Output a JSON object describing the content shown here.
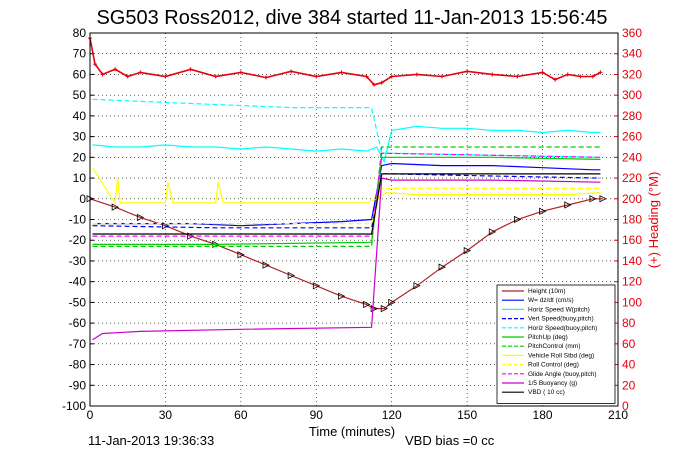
{
  "title": "SG503 Ross2012, dive 384 started 11-Jan-2013 15:56:45",
  "xlabel": "Time (minutes)",
  "ylabel_right": "(+) Heading (°M)",
  "footer_left": "11-Jan-2013 19:36:33",
  "footer_right": "VBD bias =0 cc",
  "colors": {
    "heading": "#e8000b",
    "right_axis": "#e8000b"
  },
  "chart_data": {
    "type": "line",
    "xlim": [
      0,
      210
    ],
    "ylim_left": [
      -100,
      80
    ],
    "ylim_right": [
      0,
      360
    ],
    "x_ticks": [
      "0",
      "30",
      "60",
      "90",
      "120",
      "150",
      "180",
      "210"
    ],
    "y_ticks_left": [
      "80",
      "70",
      "60",
      "50",
      "40",
      "30",
      "20",
      "10",
      "0",
      "-10",
      "-20",
      "-30",
      "-40",
      "-50",
      "-60",
      "-70",
      "-80",
      "-90",
      "-100"
    ],
    "y_ticks_right": [
      "360",
      "340",
      "320",
      "300",
      "280",
      "260",
      "240",
      "220",
      "200",
      "180",
      "160",
      "140",
      "120",
      "100",
      "80",
      "60",
      "40",
      "20",
      "0"
    ],
    "grid": true,
    "legend_position": "bottom-right",
    "series": [
      {
        "name": "Height (10m)",
        "color": "#b22222",
        "style": "solid",
        "marker": "triangle",
        "x": [
          0,
          10,
          20,
          30,
          40,
          50,
          60,
          70,
          80,
          90,
          100,
          110,
          113,
          117,
          120,
          130,
          140,
          150,
          160,
          170,
          180,
          190,
          200,
          204
        ],
        "y": [
          0,
          -4,
          -9,
          -13,
          -18,
          -22,
          -27,
          -32,
          -37,
          -42,
          -47,
          -51,
          -53,
          -53,
          -50,
          -42,
          -33,
          -25,
          -16,
          -10,
          -6,
          -3,
          0,
          0
        ]
      },
      {
        "name": "W= dz/dt (cm/s)",
        "color": "#0000ff",
        "style": "solid",
        "x": [
          1,
          20,
          40,
          60,
          80,
          100,
          112,
          116,
          120,
          140,
          160,
          180,
          200,
          203
        ],
        "y": [
          -12,
          -12,
          -12,
          -13,
          -12,
          -11,
          -10,
          16,
          17,
          16,
          16,
          15,
          14,
          14
        ]
      },
      {
        "name": "Horiz Speed W(pitch)",
        "color": "#00ffff",
        "style": "solid",
        "x": [
          1,
          10,
          20,
          30,
          40,
          50,
          60,
          70,
          80,
          90,
          100,
          110,
          114,
          117,
          120,
          130,
          140,
          150,
          160,
          170,
          180,
          190,
          200,
          203
        ],
        "y": [
          26,
          25,
          25,
          26,
          25,
          25,
          24,
          25,
          24,
          23,
          24,
          23,
          25,
          18,
          33,
          35,
          34,
          34,
          33,
          33,
          32,
          33,
          32,
          32
        ]
      },
      {
        "name": "Vert Speed(buoy,pitch)",
        "color": "#0000ff",
        "style": "dashed",
        "x": [
          1,
          50,
          112,
          116,
          120,
          160,
          203
        ],
        "y": [
          -13,
          -14,
          -14,
          12,
          12,
          11,
          10
        ]
      },
      {
        "name": "Horiz Speed(buoy,pitch)",
        "color": "#00ffff",
        "style": "dashed",
        "x": [
          1,
          40,
          80,
          112,
          116,
          120,
          160,
          203
        ],
        "y": [
          48,
          46,
          44,
          44,
          22,
          22,
          21,
          20
        ]
      },
      {
        "name": "PitchUp (deg)",
        "color": "#00cc00",
        "style": "solid",
        "x": [
          1,
          50,
          112,
          116,
          120,
          160,
          203
        ],
        "y": [
          -22,
          -22,
          -21,
          20,
          20,
          20,
          19
        ]
      },
      {
        "name": "PitchControl (mm)",
        "color": "#00cc00",
        "style": "dashed",
        "x": [
          1,
          112,
          116,
          203
        ],
        "y": [
          -23,
          -23,
          25,
          25
        ]
      },
      {
        "name": "Vehicle Roll Stbd (deg)",
        "color": "#ffff00",
        "style": "solid",
        "x": [
          1,
          10,
          11,
          12,
          20,
          30,
          31,
          33,
          40,
          50,
          51,
          53,
          60,
          70,
          80,
          90,
          100,
          110,
          114,
          118,
          130,
          150,
          170,
          190,
          203
        ],
        "y": [
          15,
          -2,
          10,
          -2,
          -2,
          -2,
          8,
          -2,
          -2,
          -2,
          8,
          -2,
          -2,
          -2,
          -2,
          -2,
          -2,
          -2,
          0,
          3,
          2,
          2,
          2,
          2,
          3
        ]
      },
      {
        "name": "Roll Control (deg)",
        "color": "#ffff00",
        "style": "dashed",
        "x": [
          1,
          112,
          116,
          203
        ],
        "y": [
          -12,
          -12,
          5,
          5
        ]
      },
      {
        "name": "Glide Angle (buoy,pitch)",
        "color": "#ff00ff",
        "style": "dashed",
        "x": [
          1,
          112,
          116,
          203
        ],
        "y": [
          -18,
          -18,
          22,
          20
        ]
      },
      {
        "name": "1/5 Buoyancy (g)",
        "color": "#cc00cc",
        "style": "solid",
        "x": [
          1,
          5,
          20,
          60,
          112,
          116,
          120,
          160,
          203
        ],
        "y": [
          -68,
          -65,
          -64,
          -63,
          -62,
          10,
          9,
          9,
          8
        ]
      },
      {
        "name": "VBD ( 10 cc)",
        "color": "#000000",
        "style": "solid",
        "x": [
          1,
          112,
          116,
          203
        ],
        "y": [
          -17,
          -17,
          12,
          12
        ]
      },
      {
        "name": "Heading",
        "axis": "right",
        "color": "#e8000b",
        "style": "solid",
        "marker": "plus",
        "x": [
          0,
          2,
          5,
          10,
          15,
          20,
          30,
          40,
          50,
          60,
          70,
          80,
          90,
          100,
          110,
          113,
          116,
          120,
          130,
          140,
          150,
          160,
          170,
          180,
          185,
          190,
          195,
          200,
          203
        ],
        "y": [
          355,
          330,
          320,
          325,
          318,
          322,
          318,
          325,
          318,
          322,
          317,
          323,
          318,
          322,
          318,
          310,
          312,
          318,
          320,
          318,
          323,
          320,
          318,
          322,
          315,
          320,
          318,
          318,
          322
        ]
      }
    ]
  }
}
